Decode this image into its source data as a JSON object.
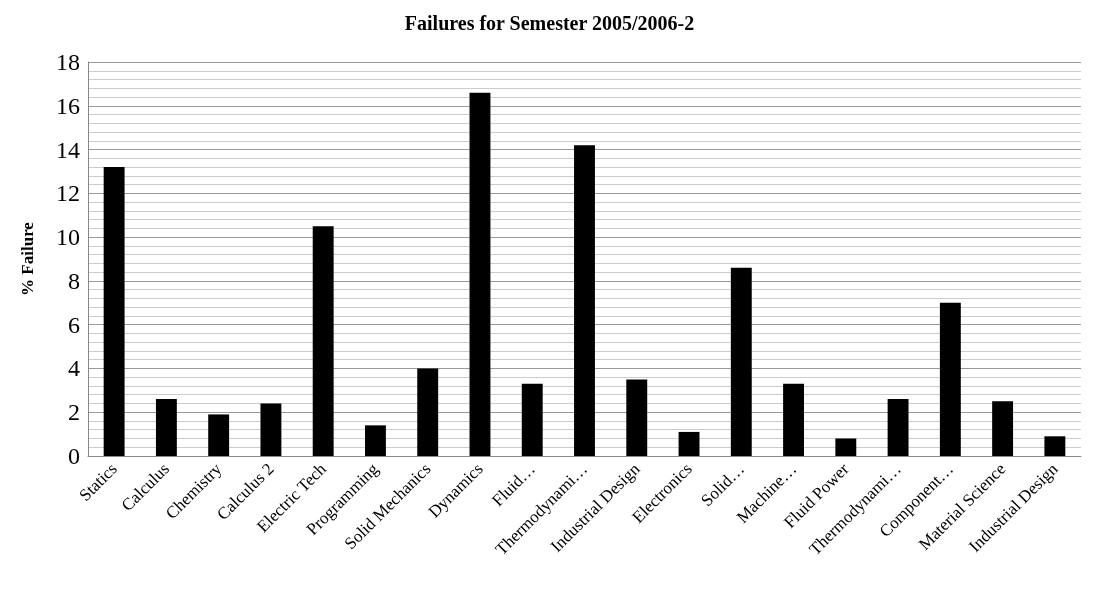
{
  "chart_data": {
    "type": "bar",
    "title": "Failures for Semester 2005/2006-2",
    "ylabel": "% Failure",
    "categories": [
      "Statics",
      "Calculus",
      "Chemistry",
      "Calculus 2",
      "Electric Tech",
      "Programming",
      "Solid Mechanics",
      "Dynamics",
      "Fluid…",
      "Thermodynami…",
      "Industrial Design",
      "Electronics",
      "Solid…",
      "Machine…",
      "Fluid Power",
      "Thermodynami…",
      "Component…",
      "Material Science",
      "Industrial Design"
    ],
    "values": [
      13.2,
      2.6,
      1.9,
      2.4,
      10.5,
      1.4,
      4.0,
      16.6,
      3.3,
      14.2,
      3.5,
      1.1,
      8.6,
      3.3,
      0.8,
      2.6,
      7.0,
      2.5,
      0.9
    ],
    "color": "#000000",
    "ylim": [
      0,
      18
    ],
    "yticks": [
      0,
      2,
      4,
      6,
      8,
      10,
      12,
      14,
      16,
      18
    ],
    "grid": "y"
  }
}
